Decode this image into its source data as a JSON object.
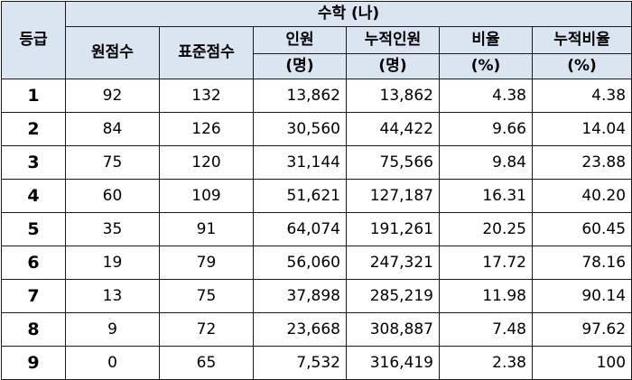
{
  "header": {
    "grade": "등급",
    "subject": "수학 (나)",
    "raw_score": "원점수",
    "std_score": "표준점수",
    "count_top": "인원",
    "count_bottom": "(명)",
    "cum_count_top": "누적인원",
    "cum_count_bottom": "(명)",
    "ratio_top": "비율",
    "ratio_bottom": "(%)",
    "cum_ratio_top": "누적비율",
    "cum_ratio_bottom": "(%)"
  },
  "rows": [
    {
      "grade": "1",
      "raw": "92",
      "std": "132",
      "count": "13,862",
      "cum_count": "13,862",
      "ratio": "4.38",
      "cum_ratio": "4.38"
    },
    {
      "grade": "2",
      "raw": "84",
      "std": "126",
      "count": "30,560",
      "cum_count": "44,422",
      "ratio": "9.66",
      "cum_ratio": "14.04"
    },
    {
      "grade": "3",
      "raw": "75",
      "std": "120",
      "count": "31,144",
      "cum_count": "75,566",
      "ratio": "9.84",
      "cum_ratio": "23.88"
    },
    {
      "grade": "4",
      "raw": "60",
      "std": "109",
      "count": "51,621",
      "cum_count": "127,187",
      "ratio": "16.31",
      "cum_ratio": "40.20"
    },
    {
      "grade": "5",
      "raw": "35",
      "std": "91",
      "count": "64,074",
      "cum_count": "191,261",
      "ratio": "20.25",
      "cum_ratio": "60.45"
    },
    {
      "grade": "6",
      "raw": "19",
      "std": "79",
      "count": "56,060",
      "cum_count": "247,321",
      "ratio": "17.72",
      "cum_ratio": "78.16"
    },
    {
      "grade": "7",
      "raw": "13",
      "std": "75",
      "count": "37,898",
      "cum_count": "285,219",
      "ratio": "11.98",
      "cum_ratio": "90.14"
    },
    {
      "grade": "8",
      "raw": "9",
      "std": "72",
      "count": "23,668",
      "cum_count": "308,887",
      "ratio": "7.48",
      "cum_ratio": "97.62"
    },
    {
      "grade": "9",
      "raw": "0",
      "std": "65",
      "count": "7,532",
      "cum_count": "316,419",
      "ratio": "2.38",
      "cum_ratio": "100"
    }
  ],
  "colors": {
    "header_bg": "#dbe5f1",
    "border": "#1a1a1a"
  }
}
